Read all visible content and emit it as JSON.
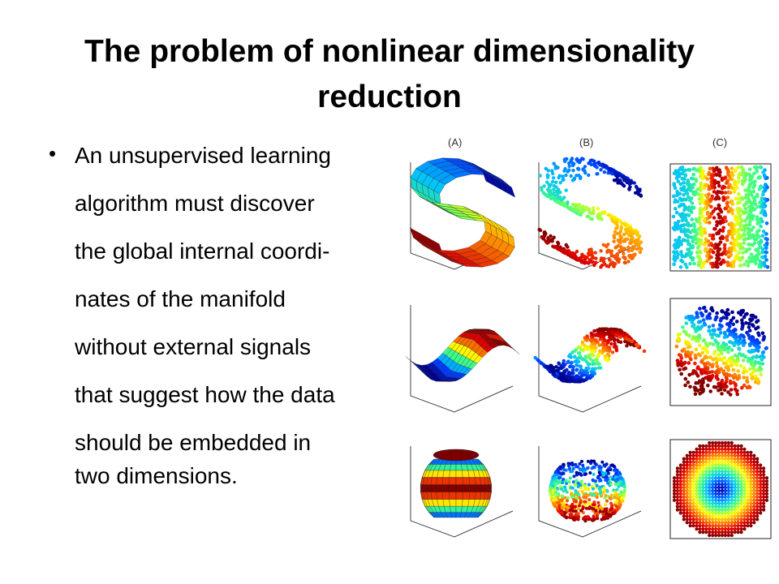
{
  "slide": {
    "title_line1": "The problem of nonlinear dimensionality",
    "title_line2": "reduction",
    "bullet_lines": [
      "An unsupervised learning",
      "algorithm must discover",
      "the global internal coordi-",
      "nates  of the manifold",
      "without external signals",
      "that suggest  how the data",
      "should be embedded in",
      "two dimensions."
    ]
  },
  "figure": {
    "column_labels": [
      "(A)",
      "(B)",
      "(C)"
    ],
    "rows": [
      {
        "manifold": "s-curve",
        "panels": [
          "surface",
          "points-3d",
          "embedding-2d"
        ]
      },
      {
        "manifold": "fishbowl-wave",
        "panels": [
          "surface",
          "points-3d",
          "embedding-2d"
        ]
      },
      {
        "manifold": "sphere",
        "panels": [
          "surface",
          "points-3d",
          "embedding-2d"
        ]
      }
    ],
    "colormap": [
      "#00008f",
      "#0040ff",
      "#00c0ff",
      "#40ff80",
      "#ffff00",
      "#ff8000",
      "#e00000",
      "#800000"
    ]
  }
}
